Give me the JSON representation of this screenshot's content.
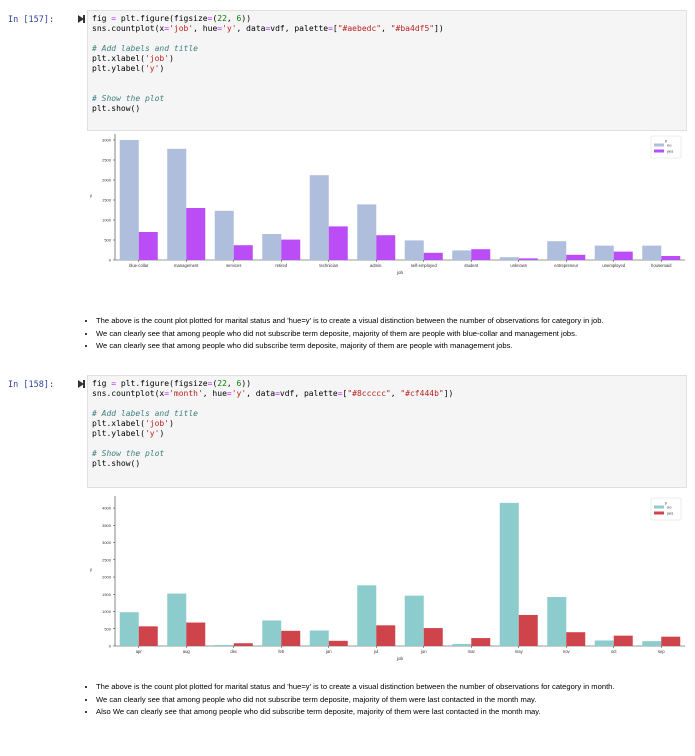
{
  "cell1": {
    "prompt": "In [157]:",
    "code": [
      [
        [
          "fig ",
          "kw"
        ],
        [
          "=",
          "eq"
        ],
        [
          " plt.figure(figsize",
          "kw"
        ],
        [
          "=",
          "eq"
        ],
        [
          "(",
          "kw"
        ],
        [
          "22",
          "num"
        ],
        [
          ", ",
          "kw"
        ],
        [
          "6",
          "num"
        ],
        [
          "))",
          "kw"
        ]
      ],
      [
        [
          "sns.countplot(x",
          "kw"
        ],
        [
          "=",
          "eq"
        ],
        [
          "'job'",
          "str"
        ],
        [
          ", hue",
          "kw"
        ],
        [
          "=",
          "eq"
        ],
        [
          "'y'",
          "str"
        ],
        [
          ", data",
          "kw"
        ],
        [
          "=",
          "eq"
        ],
        [
          "vdf, palette",
          "kw"
        ],
        [
          "=",
          "eq"
        ],
        [
          "[",
          "kw"
        ],
        [
          "\"#aebedc\"",
          "str"
        ],
        [
          ", ",
          "kw"
        ],
        [
          "\"#ba4df5\"",
          "str"
        ],
        [
          "])",
          "kw"
        ]
      ],
      [],
      [
        [
          "# Add labels and title",
          "com"
        ]
      ],
      [
        [
          "plt.xlabel(",
          "kw"
        ],
        [
          "'job'",
          "str"
        ],
        [
          ")",
          "kw"
        ]
      ],
      [
        [
          "plt.ylabel(",
          "kw"
        ],
        [
          "'y'",
          "str"
        ],
        [
          ")",
          "kw"
        ]
      ],
      [],
      [],
      [
        [
          "# Show the plot",
          "com"
        ]
      ],
      [
        [
          "plt.show()",
          "kw"
        ]
      ]
    ],
    "bullets": [
      "The above is the count plot plotted for marital status and 'hue=y' is to create a visual distinction between the number of observations for category in job.",
      "We can clearly see that among people who did not subscribe term deposite, majority of them are people with blue-collar and management jobs.",
      "We can clearly see that among people who did subscribe term deposite, majority of them are people with management jobs."
    ]
  },
  "cell2": {
    "prompt": "In [158]:",
    "code": [
      [
        [
          "fig ",
          "kw"
        ],
        [
          "=",
          "eq"
        ],
        [
          " plt.figure(figsize",
          "kw"
        ],
        [
          "=",
          "eq"
        ],
        [
          "(",
          "kw"
        ],
        [
          "22",
          "num"
        ],
        [
          ", ",
          "kw"
        ],
        [
          "6",
          "num"
        ],
        [
          "))",
          "kw"
        ]
      ],
      [
        [
          "sns.countplot(x",
          "kw"
        ],
        [
          "=",
          "eq"
        ],
        [
          "'month'",
          "str"
        ],
        [
          ", hue",
          "kw"
        ],
        [
          "=",
          "eq"
        ],
        [
          "'y'",
          "str"
        ],
        [
          ", data",
          "kw"
        ],
        [
          "=",
          "eq"
        ],
        [
          "vdf, palette",
          "kw"
        ],
        [
          "=",
          "eq"
        ],
        [
          "[",
          "kw"
        ],
        [
          "\"#8ccccc\"",
          "str"
        ],
        [
          ", ",
          "kw"
        ],
        [
          "\"#cf444b\"",
          "str"
        ],
        [
          "])",
          "kw"
        ]
      ],
      [],
      [
        [
          "# Add labels and title",
          "com"
        ]
      ],
      [
        [
          "plt.xlabel(",
          "kw"
        ],
        [
          "'job'",
          "str"
        ],
        [
          ")",
          "kw"
        ]
      ],
      [
        [
          "plt.ylabel(",
          "kw"
        ],
        [
          "'y'",
          "str"
        ],
        [
          ")",
          "kw"
        ]
      ],
      [],
      [
        [
          "# Show the plot",
          "com"
        ]
      ],
      [
        [
          "plt.show()",
          "kw"
        ]
      ]
    ],
    "bullets": [
      "The above is the count plot plotted for marital status and 'hue=y' is to create a visual distinction between the number of observations for category in month.",
      "We can clearly see that among people who did not subscribe term deposite, majority of them were last contacted in the month may.",
      "Also We can clearly see that among people who did subscribe term deposite, majority of them were last contacted in the month may."
    ]
  },
  "chart_data": [
    {
      "type": "bar",
      "xlabel": "job",
      "ylabel": "y",
      "legend_title": "y",
      "legend_position": "top-right",
      "categories": [
        "blue-collar",
        "management",
        "services",
        "retired",
        "technician",
        "admin.",
        "self-employed",
        "student",
        "unknown",
        "entrepreneur",
        "unemployed",
        "housemaid"
      ],
      "series": [
        {
          "name": "no",
          "color": "#aebedc",
          "values": [
            3000,
            2780,
            1230,
            650,
            2120,
            1390,
            490,
            240,
            70,
            470,
            360,
            360
          ]
        },
        {
          "name": "yes",
          "color": "#ba4df5",
          "values": [
            700,
            1300,
            370,
            510,
            840,
            620,
            180,
            270,
            40,
            130,
            210,
            100
          ]
        }
      ],
      "yticks": [
        0,
        500,
        1000,
        1500,
        2000,
        2500,
        3000
      ],
      "ylim": [
        0,
        3150
      ]
    },
    {
      "type": "bar",
      "xlabel": "job",
      "ylabel": "y",
      "legend_title": "y",
      "legend_position": "top-right",
      "categories": [
        "apr",
        "aug",
        "dec",
        "feb",
        "jan",
        "jul",
        "jun",
        "mar",
        "may",
        "nov",
        "oct",
        "sep"
      ],
      "series": [
        {
          "name": "no",
          "color": "#8ccccc",
          "values": [
            980,
            1520,
            30,
            740,
            450,
            1760,
            1460,
            60,
            4150,
            1420,
            160,
            140
          ]
        },
        {
          "name": "yes",
          "color": "#cf444b",
          "values": [
            570,
            680,
            80,
            440,
            150,
            600,
            520,
            230,
            900,
            400,
            300,
            270
          ]
        }
      ],
      "yticks": [
        0,
        500,
        1000,
        1500,
        2000,
        2500,
        3000,
        3500,
        4000
      ],
      "ylim": [
        0,
        4350
      ]
    }
  ]
}
